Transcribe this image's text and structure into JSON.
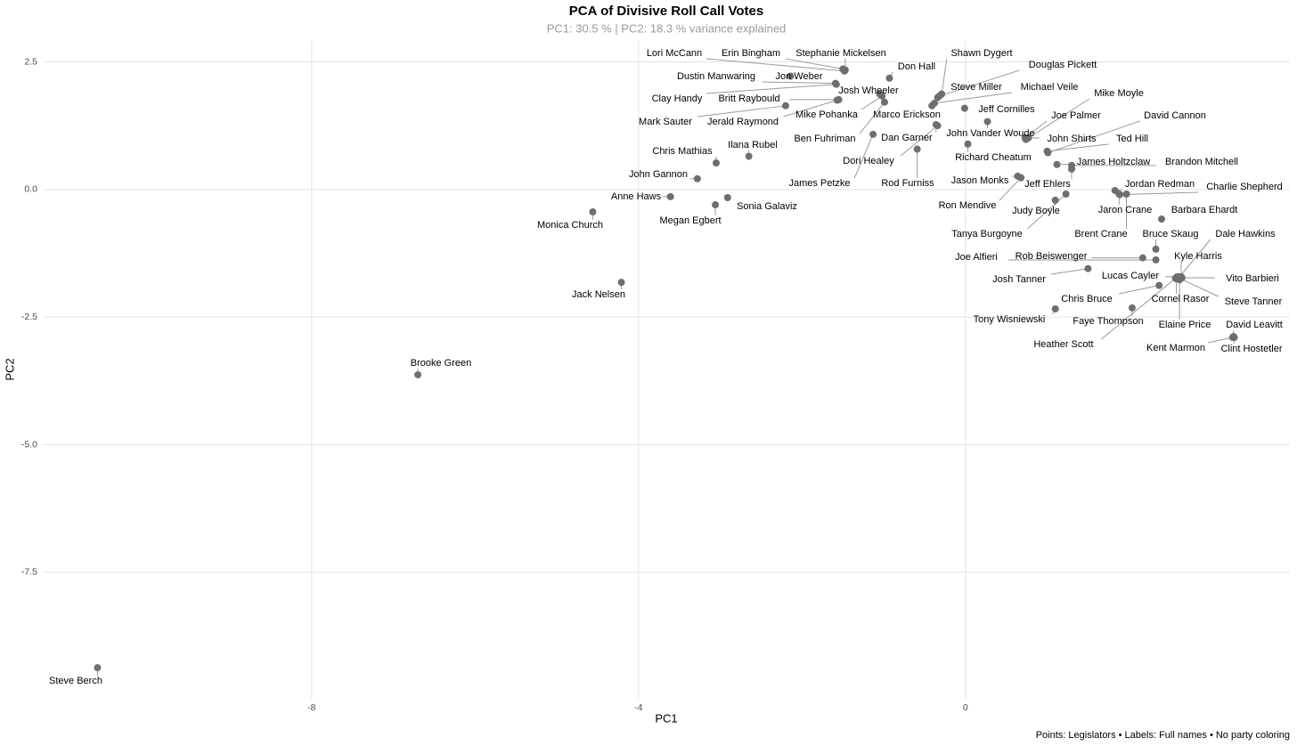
{
  "chart_data": {
    "type": "scatter",
    "title": "PCA of Divisive Roll Call Votes",
    "subtitle": "PC1: 30.5 % | PC2: 18.3 % variance explained",
    "x_label": "PC1",
    "y_label": "PC2",
    "caption": "Points: Legislators • Labels: Full names • No party coloring",
    "color": "#6e6e6e",
    "grid": true,
    "xlim": [
      -11.29,
      3.97
    ],
    "ylim": [
      -9.98,
      2.91
    ],
    "xticks": [
      -8,
      -4,
      {
        "value": 0,
        "label": "0"
      }
    ],
    "yticks": [
      2.5,
      {
        "value": 0,
        "label": "0.0"
      },
      -2.5,
      {
        "value": -5,
        "label": "-5.0"
      },
      -7.5
    ],
    "labels": [
      "Steve Berch",
      "Brooke Green",
      "Jack Nelsen",
      "Monica Church",
      "Anne Haws",
      "Megan Egbert",
      "Sonia Galaviz",
      "John Gannon",
      "Chris Mathias",
      "Ilana Rubel",
      "Lori McCann",
      "Erin Bingham",
      "Stephanie Mickelsen",
      "Jon Weber",
      "Dustin Manwaring",
      "Clay Handy",
      "Josh Wheeler",
      "Britt Raybould",
      "Mark Sauter",
      "Jerald Raymond",
      "Mike Pohanka",
      "Ben Fuhriman",
      "Don Hall",
      "Shawn Dygert",
      "Douglas Pickett",
      "Steve Miller",
      "Michael Veile",
      "Marco Erickson",
      "Jeff Cornilles",
      "John Vander Woude",
      "Dan Garner",
      "Dori Healey",
      "James Petzke",
      "Rod Furniss",
      "Richard Cheatum",
      "Mike Moyle",
      "Joe Palmer",
      "John Shirts",
      "David Cannon",
      "Ted Hill",
      "James Holtzclaw",
      "Brandon Mitchell",
      "Jason Monks",
      "Jeff Ehlers",
      "Ron Mendive",
      "Judy Boyle",
      "Tanya Burgoyne",
      "Jordan Redman",
      "Charlie Shepherd",
      "Jaron Crane",
      "Brent Crane",
      "Barbara Ehardt",
      "Bruce Skaug",
      "Dale Hawkins",
      "Kyle Harris",
      "Joe Alfieri",
      "Rob Beiswenger",
      "Lucas Cayler",
      "Vito Barbieri",
      "Steve Tanner",
      "Josh Tanner",
      "Chris Bruce",
      "Cornel Rasor",
      "Elaine Price",
      "Tony Wisniewski",
      "Faye Thompson",
      "Heather Scott",
      "David Leavitt",
      "Kent Marmon",
      "Clint Hostetler"
    ],
    "x": [
      -10.62,
      -6.7,
      -4.21,
      -4.56,
      -3.61,
      -3.06,
      -2.91,
      -3.28,
      -3.05,
      -2.65,
      -1.48,
      -1.5,
      -1.47,
      -2.14,
      -1.59,
      -1.58,
      -1.05,
      -1.55,
      -2.2,
      -1.57,
      -1.02,
      -0.99,
      -0.93,
      -0.29,
      -0.32,
      -0.34,
      -0.38,
      -0.41,
      -0.01,
      0.27,
      -0.36,
      -0.34,
      -1.13,
      -0.59,
      0.03,
      0.74,
      0.73,
      0.77,
      1.01,
      1.0,
      1.12,
      1.3,
      0.64,
      1.3,
      0.68,
      1.1,
      1.23,
      1.83,
      1.89,
      1.88,
      1.97,
      2.4,
      2.33,
      2.62,
      2.64,
      2.33,
      2.17,
      2.59,
      2.65,
      2.63,
      1.5,
      2.37,
      2.58,
      2.62,
      1.1,
      2.04,
      2.57,
      3.28,
      3.27,
      3.29
    ],
    "values": [
      -9.37,
      -3.63,
      -1.82,
      -0.44,
      -0.14,
      -0.3,
      -0.16,
      0.21,
      0.52,
      0.65,
      2.32,
      2.36,
      2.34,
      2.22,
      2.08,
      2.06,
      1.87,
      1.76,
      1.64,
      1.75,
      1.83,
      1.71,
      2.18,
      1.87,
      1.83,
      1.8,
      1.69,
      1.64,
      1.59,
      1.33,
      1.27,
      1.25,
      1.08,
      0.79,
      0.89,
      0.98,
      1.01,
      1.01,
      0.72,
      0.75,
      0.49,
      0.47,
      0.26,
      0.4,
      0.23,
      -0.21,
      -0.09,
      -0.02,
      -0.1,
      -0.09,
      -0.09,
      -0.58,
      -1.17,
      -1.71,
      -1.71,
      -1.38,
      -1.34,
      -1.71,
      -1.73,
      -1.75,
      -1.55,
      -1.88,
      -1.75,
      -1.77,
      -2.34,
      -2.32,
      -1.74,
      -2.88,
      -2.9,
      -2.9
    ]
  }
}
